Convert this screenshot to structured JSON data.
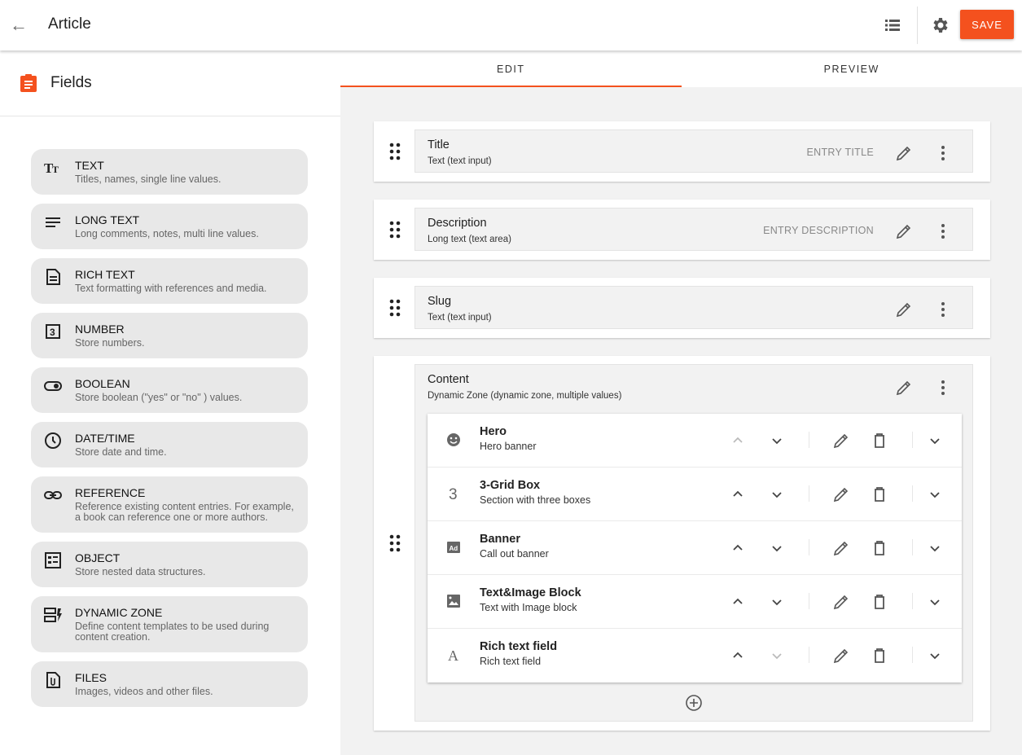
{
  "header": {
    "title": "Article",
    "save_label": "SAVE"
  },
  "sidebar": {
    "title": "Fields",
    "items": [
      {
        "name": "TEXT",
        "desc": "Titles, names, single line values.",
        "icon": "text-icon"
      },
      {
        "name": "LONG TEXT",
        "desc": "Long comments, notes, multi line values.",
        "icon": "lines-icon"
      },
      {
        "name": "RICH TEXT",
        "desc": "Text formatting with references and media.",
        "icon": "document-icon"
      },
      {
        "name": "NUMBER",
        "desc": "Store numbers.",
        "icon": "number-icon"
      },
      {
        "name": "BOOLEAN",
        "desc": "Store boolean (\"yes\" or \"no\" ) values.",
        "icon": "toggle-icon"
      },
      {
        "name": "DATE/TIME",
        "desc": "Store date and time.",
        "icon": "clock-icon"
      },
      {
        "name": "REFERENCE",
        "desc": "Reference existing content entries. For example, a book can reference one or more authors.",
        "icon": "link-icon"
      },
      {
        "name": "OBJECT",
        "desc": "Store nested data structures.",
        "icon": "object-icon"
      },
      {
        "name": "DYNAMIC ZONE",
        "desc": "Define content templates to be used during content creation.",
        "icon": "dynamic-zone-icon"
      },
      {
        "name": "FILES",
        "desc": "Images, videos and other files.",
        "icon": "file-icon"
      }
    ]
  },
  "tabs": [
    {
      "label": "EDIT",
      "active": true
    },
    {
      "label": "PREVIEW",
      "active": false
    }
  ],
  "fields": [
    {
      "name": "Title",
      "type": "Text (text input)",
      "tag": "ENTRY TITLE"
    },
    {
      "name": "Description",
      "type": "Long text (text area)",
      "tag": "ENTRY DESCRIPTION"
    },
    {
      "name": "Slug",
      "type": "Text (text input)",
      "tag": ""
    },
    {
      "name": "Content",
      "type": "Dynamic Zone (dynamic zone, multiple values)",
      "tag": ""
    }
  ],
  "components": [
    {
      "name": "Hero",
      "desc": "Hero banner",
      "icon": "smiley-icon",
      "up_disabled": true,
      "down_disabled": false
    },
    {
      "name": "3-Grid Box",
      "desc": "Section with three boxes",
      "icon": "number-three-icon",
      "up_disabled": false,
      "down_disabled": false
    },
    {
      "name": "Banner",
      "desc": "Call out banner",
      "icon": "ad-icon",
      "up_disabled": false,
      "down_disabled": false
    },
    {
      "name": "Text&Image Block",
      "desc": "Text with Image block",
      "icon": "image-icon",
      "up_disabled": false,
      "down_disabled": false
    },
    {
      "name": "Rich text field",
      "desc": "Rich text field",
      "icon": "font-icon",
      "up_disabled": false,
      "down_disabled": true
    }
  ],
  "colors": {
    "accent": "#f4511e"
  }
}
